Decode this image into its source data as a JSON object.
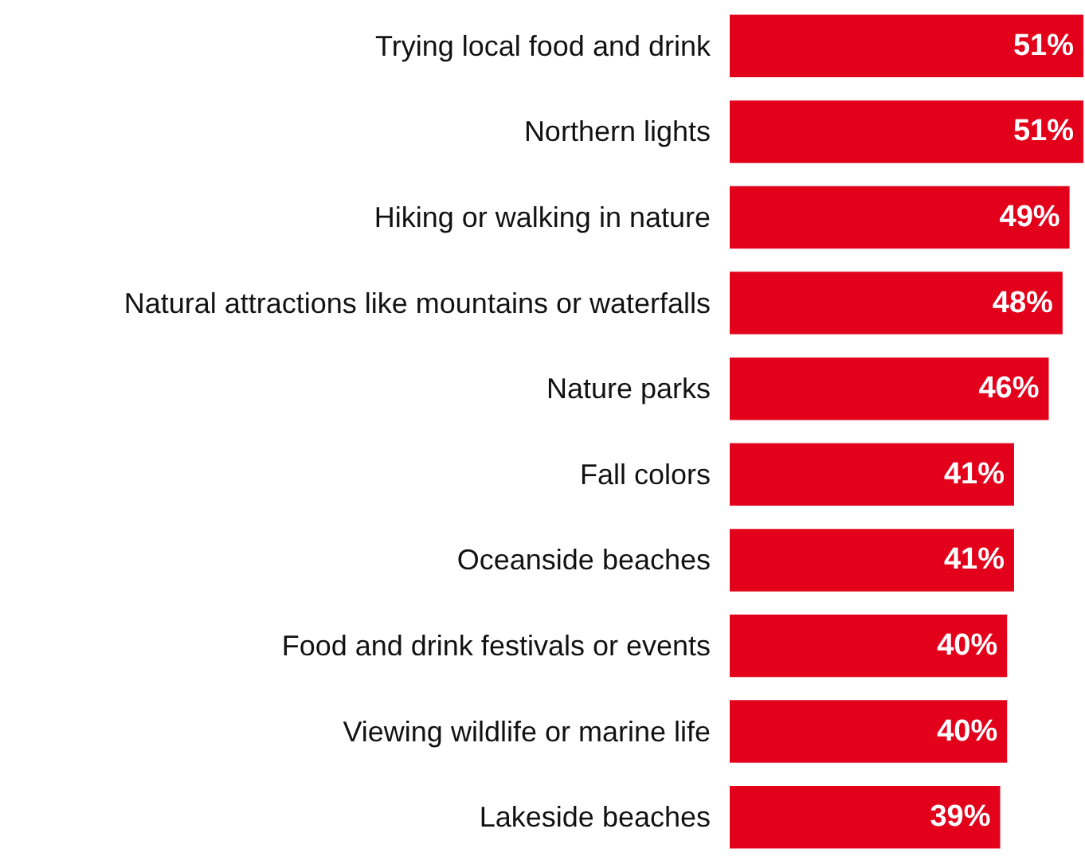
{
  "chart_data": {
    "type": "bar",
    "orientation": "horizontal",
    "categories": [
      "Trying local food and drink",
      "Northern lights",
      "Hiking or walking in nature",
      "Natural attractions like mountains or waterfalls",
      "Nature parks",
      "Fall colors",
      "Oceanside beaches",
      "Food and drink festivals or events",
      "Viewing wildlife or marine life",
      "Lakeside beaches"
    ],
    "values": [
      51,
      51,
      49,
      48,
      46,
      41,
      41,
      40,
      40,
      39
    ],
    "value_labels": [
      "51%",
      "51%",
      "49%",
      "48%",
      "46%",
      "41%",
      "41%",
      "40%",
      "40%",
      "39%"
    ],
    "color": "#e3001b"
  }
}
